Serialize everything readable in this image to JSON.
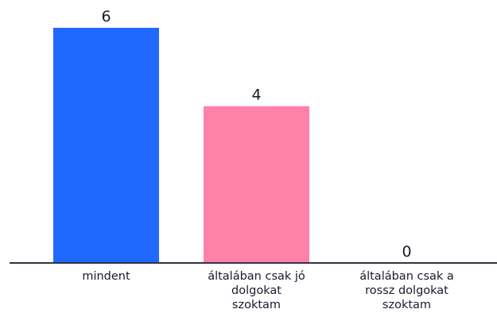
{
  "chart_data": {
    "type": "bar",
    "categories": [
      [
        "mindent"
      ],
      [
        "általában csak jó",
        "dolgokat",
        "szoktam"
      ],
      [
        "általában csak a",
        "rossz dolgokat",
        "szoktam"
      ]
    ],
    "values": [
      6,
      4,
      0
    ],
    "colors": [
      "#1f69ff",
      "#ff80a8",
      "#1f69ff"
    ],
    "axis_color": "#333344",
    "text_color": "#1a1a2e",
    "ylim": [
      0,
      6
    ],
    "grid": false,
    "legend": "none",
    "title": "",
    "xlabel": "",
    "ylabel": ""
  }
}
